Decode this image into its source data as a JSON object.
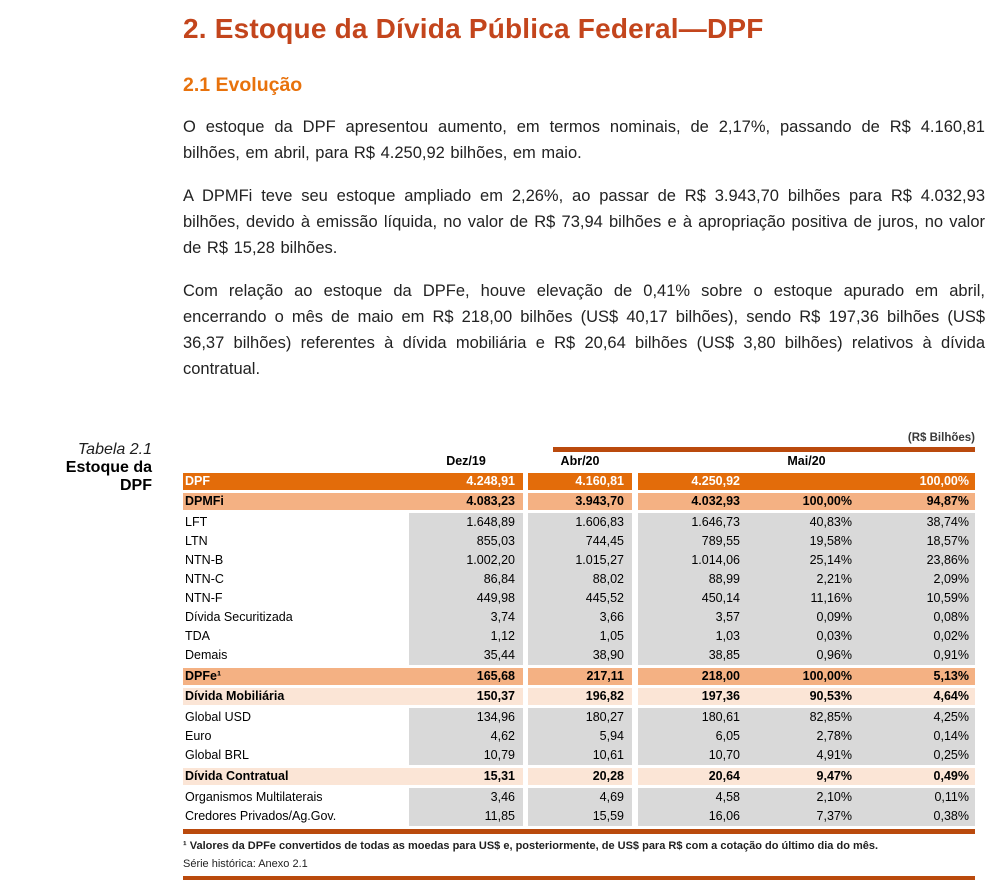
{
  "page": {
    "title": "2. Estoque da Dívida Pública Federal—DPF",
    "section_title": "2.1 Evolução",
    "paragraphs": [
      "O estoque da DPF apresentou aumento, em termos nominais, de 2,17%, passando de R$ 4.160,81 bilhões, em abril, para R$ 4.250,92 bilhões, em maio.",
      "A DPMFi teve seu estoque ampliado em 2,26%, ao passar de R$ 3.943,70 bilhões para R$ 4.032,93 bilhões, devido à emissão líquida, no valor de R$ 73,94 bilhões e à apropriação positiva de juros, no valor de R$ 15,28 bilhões.",
      "Com relação ao estoque da DPFe, houve elevação de 0,41% sobre o estoque apurado em abril, encerrando o mês de maio em R$ 218,00 bilhões (US$ 40,17 bilhões), sendo R$ 197,36 bilhões (US$ 36,37 bilhões) referentes à dívida mobiliária e R$ 20,64 bilhões (US$ 3,80 bilhões) relativos à dívida contratual."
    ]
  },
  "table": {
    "caption_line1": "Tabela 2.1",
    "caption_line2": "Estoque da DPF",
    "unit_label": "(R$ Bilhões)",
    "columns": {
      "col1": "Dez/19",
      "col2": "Abr/20",
      "col3": "Mai/20"
    },
    "rows": [
      {
        "label": "DPF",
        "dez": "4.248,91",
        "abr": "4.160,81",
        "mai": "4.250,92",
        "pct_group": "",
        "pct_dpf": "100,00%",
        "style": "total"
      },
      {
        "label": "DPMFi",
        "dez": "4.083,23",
        "abr": "3.943,70",
        "mai": "4.032,93",
        "pct_group": "100,00%",
        "pct_dpf": "94,87%",
        "style": "subtotal"
      },
      {
        "label": "LFT",
        "dez": "1.648,89",
        "abr": "1.606,83",
        "mai": "1.646,73",
        "pct_group": "40,83%",
        "pct_dpf": "38,74%",
        "style": "detail"
      },
      {
        "label": "LTN",
        "dez": "855,03",
        "abr": "744,45",
        "mai": "789,55",
        "pct_group": "19,58%",
        "pct_dpf": "18,57%",
        "style": "detail"
      },
      {
        "label": "NTN-B",
        "dez": "1.002,20",
        "abr": "1.015,27",
        "mai": "1.014,06",
        "pct_group": "25,14%",
        "pct_dpf": "23,86%",
        "style": "detail"
      },
      {
        "label": "NTN-C",
        "dez": "86,84",
        "abr": "88,02",
        "mai": "88,99",
        "pct_group": "2,21%",
        "pct_dpf": "2,09%",
        "style": "detail"
      },
      {
        "label": "NTN-F",
        "dez": "449,98",
        "abr": "445,52",
        "mai": "450,14",
        "pct_group": "11,16%",
        "pct_dpf": "10,59%",
        "style": "detail"
      },
      {
        "label": "Dívida Securitizada",
        "dez": "3,74",
        "abr": "3,66",
        "mai": "3,57",
        "pct_group": "0,09%",
        "pct_dpf": "0,08%",
        "style": "detail"
      },
      {
        "label": "TDA",
        "dez": "1,12",
        "abr": "1,05",
        "mai": "1,03",
        "pct_group": "0,03%",
        "pct_dpf": "0,02%",
        "style": "detail"
      },
      {
        "label": "Demais",
        "dez": "35,44",
        "abr": "38,90",
        "mai": "38,85",
        "pct_group": "0,96%",
        "pct_dpf": "0,91%",
        "style": "detail"
      },
      {
        "label": "DPFe¹",
        "dez": "165,68",
        "abr": "217,11",
        "mai": "218,00",
        "pct_group": "100,00%",
        "pct_dpf": "5,13%",
        "style": "subtotal"
      },
      {
        "label": "Dívida Mobiliária",
        "dez": "150,37",
        "abr": "196,82",
        "mai": "197,36",
        "pct_group": "90,53%",
        "pct_dpf": "4,64%",
        "style": "subsection"
      },
      {
        "label": "Global USD",
        "dez": "134,96",
        "abr": "180,27",
        "mai": "180,61",
        "pct_group": "82,85%",
        "pct_dpf": "4,25%",
        "style": "detail"
      },
      {
        "label": "Euro",
        "dez": "4,62",
        "abr": "5,94",
        "mai": "6,05",
        "pct_group": "2,78%",
        "pct_dpf": "0,14%",
        "style": "detail"
      },
      {
        "label": "Global BRL",
        "dez": "10,79",
        "abr": "10,61",
        "mai": "10,70",
        "pct_group": "4,91%",
        "pct_dpf": "0,25%",
        "style": "detail"
      },
      {
        "label": "Dívida Contratual",
        "dez": "15,31",
        "abr": "20,28",
        "mai": "20,64",
        "pct_group": "9,47%",
        "pct_dpf": "0,49%",
        "style": "subsection"
      },
      {
        "label": "Organismos Multilaterais",
        "dez": "3,46",
        "abr": "4,69",
        "mai": "4,58",
        "pct_group": "2,10%",
        "pct_dpf": "0,11%",
        "style": "detail"
      },
      {
        "label": "Credores Privados/Ag.Gov.",
        "dez": "11,85",
        "abr": "15,59",
        "mai": "16,06",
        "pct_group": "7,37%",
        "pct_dpf": "0,38%",
        "style": "detail"
      }
    ],
    "footnote": "¹ Valores da DPFe convertidos de todas as moedas para US$ e, posteriormente, de US$ para R$ com a cotação do último dia do mês.",
    "source_note": "Série histórica: Anexo 2.1"
  },
  "colors": {
    "title": "#c3451c",
    "section_title": "#e8720c",
    "row_total_bg": "#e36c0a",
    "row_subtotal_bg": "#f4b183",
    "row_subsection_bg": "#fbe5d6",
    "cell_gray_bg": "#d9d9d9",
    "rule": "#ba4a0d"
  }
}
